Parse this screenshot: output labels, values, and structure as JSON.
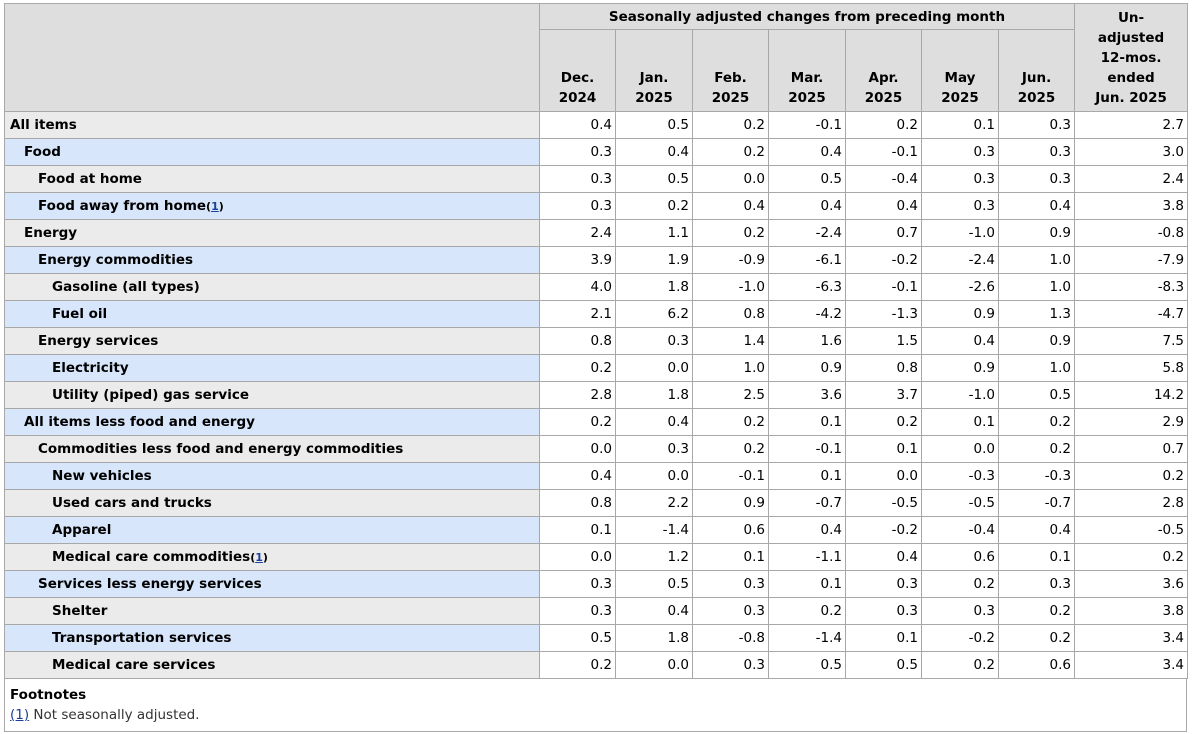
{
  "header": {
    "group_label": "Seasonally adjusted changes from preceding month",
    "months": [
      {
        "line1": "Dec.",
        "line2": "2024"
      },
      {
        "line1": "Jan.",
        "line2": "2025"
      },
      {
        "line1": "Feb.",
        "line2": "2025"
      },
      {
        "line1": "Mar.",
        "line2": "2025"
      },
      {
        "line1": "Apr.",
        "line2": "2025"
      },
      {
        "line1": "May",
        "line2": "2025"
      },
      {
        "line1": "Jun.",
        "line2": "2025"
      }
    ],
    "unadjusted": [
      "Un-",
      "adjusted",
      "12-mos.",
      "ended",
      "Jun. 2025"
    ]
  },
  "rows": [
    {
      "label": "All items",
      "level": 0,
      "values": [
        "0.4",
        "0.5",
        "0.2",
        "-0.1",
        "0.2",
        "0.1",
        "0.3",
        "2.7"
      ]
    },
    {
      "label": "Food",
      "level": 1,
      "values": [
        "0.3",
        "0.4",
        "0.2",
        "0.4",
        "-0.1",
        "0.3",
        "0.3",
        "3.0"
      ]
    },
    {
      "label": "Food at home",
      "level": 2,
      "values": [
        "0.3",
        "0.5",
        "0.0",
        "0.5",
        "-0.4",
        "0.3",
        "0.3",
        "2.4"
      ]
    },
    {
      "label": "Food away from home",
      "level": 2,
      "footnote": "1",
      "values": [
        "0.3",
        "0.2",
        "0.4",
        "0.4",
        "0.4",
        "0.3",
        "0.4",
        "3.8"
      ]
    },
    {
      "label": "Energy",
      "level": 1,
      "values": [
        "2.4",
        "1.1",
        "0.2",
        "-2.4",
        "0.7",
        "-1.0",
        "0.9",
        "-0.8"
      ]
    },
    {
      "label": "Energy commodities",
      "level": 2,
      "values": [
        "3.9",
        "1.9",
        "-0.9",
        "-6.1",
        "-0.2",
        "-2.4",
        "1.0",
        "-7.9"
      ]
    },
    {
      "label": "Gasoline (all types)",
      "level": 3,
      "values": [
        "4.0",
        "1.8",
        "-1.0",
        "-6.3",
        "-0.1",
        "-2.6",
        "1.0",
        "-8.3"
      ]
    },
    {
      "label": "Fuel oil",
      "level": 3,
      "values": [
        "2.1",
        "6.2",
        "0.8",
        "-4.2",
        "-1.3",
        "0.9",
        "1.3",
        "-4.7"
      ]
    },
    {
      "label": "Energy services",
      "level": 2,
      "values": [
        "0.8",
        "0.3",
        "1.4",
        "1.6",
        "1.5",
        "0.4",
        "0.9",
        "7.5"
      ]
    },
    {
      "label": "Electricity",
      "level": 3,
      "values": [
        "0.2",
        "0.0",
        "1.0",
        "0.9",
        "0.8",
        "0.9",
        "1.0",
        "5.8"
      ]
    },
    {
      "label": "Utility (piped) gas service",
      "level": 3,
      "values": [
        "2.8",
        "1.8",
        "2.5",
        "3.6",
        "3.7",
        "-1.0",
        "0.5",
        "14.2"
      ]
    },
    {
      "label": "All items less food and energy",
      "level": 1,
      "values": [
        "0.2",
        "0.4",
        "0.2",
        "0.1",
        "0.2",
        "0.1",
        "0.2",
        "2.9"
      ]
    },
    {
      "label": "Commodities less food and energy commodities",
      "level": 2,
      "values": [
        "0.0",
        "0.3",
        "0.2",
        "-0.1",
        "0.1",
        "0.0",
        "0.2",
        "0.7"
      ]
    },
    {
      "label": "New vehicles",
      "level": 3,
      "values": [
        "0.4",
        "0.0",
        "-0.1",
        "0.1",
        "0.0",
        "-0.3",
        "-0.3",
        "0.2"
      ]
    },
    {
      "label": "Used cars and trucks",
      "level": 3,
      "values": [
        "0.8",
        "2.2",
        "0.9",
        "-0.7",
        "-0.5",
        "-0.5",
        "-0.7",
        "2.8"
      ]
    },
    {
      "label": "Apparel",
      "level": 3,
      "values": [
        "0.1",
        "-1.4",
        "0.6",
        "0.4",
        "-0.2",
        "-0.4",
        "0.4",
        "-0.5"
      ]
    },
    {
      "label": "Medical care commodities",
      "level": 3,
      "footnote": "1",
      "values": [
        "0.0",
        "1.2",
        "0.1",
        "-1.1",
        "0.4",
        "0.6",
        "0.1",
        "0.2"
      ]
    },
    {
      "label": "Services less energy services",
      "level": 2,
      "values": [
        "0.3",
        "0.5",
        "0.3",
        "0.1",
        "0.3",
        "0.2",
        "0.3",
        "3.6"
      ]
    },
    {
      "label": "Shelter",
      "level": 3,
      "values": [
        "0.3",
        "0.4",
        "0.3",
        "0.2",
        "0.3",
        "0.3",
        "0.2",
        "3.8"
      ]
    },
    {
      "label": "Transportation services",
      "level": 3,
      "values": [
        "0.5",
        "1.8",
        "-0.8",
        "-1.4",
        "0.1",
        "-0.2",
        "0.2",
        "3.4"
      ]
    },
    {
      "label": "Medical care services",
      "level": 3,
      "values": [
        "0.2",
        "0.0",
        "0.3",
        "0.5",
        "0.5",
        "0.2",
        "0.6",
        "3.4"
      ]
    }
  ],
  "footnotes": {
    "title": "Footnotes",
    "items": [
      {
        "ref": "(1)",
        "text": "Not seasonally adjusted."
      }
    ]
  },
  "colors": {
    "header_bg": "#dedede",
    "row_odd_bg": "#ebebeb",
    "row_even_bg": "#d8e6fb",
    "link": "#1a3f9c",
    "border": "#a8a8a8"
  }
}
